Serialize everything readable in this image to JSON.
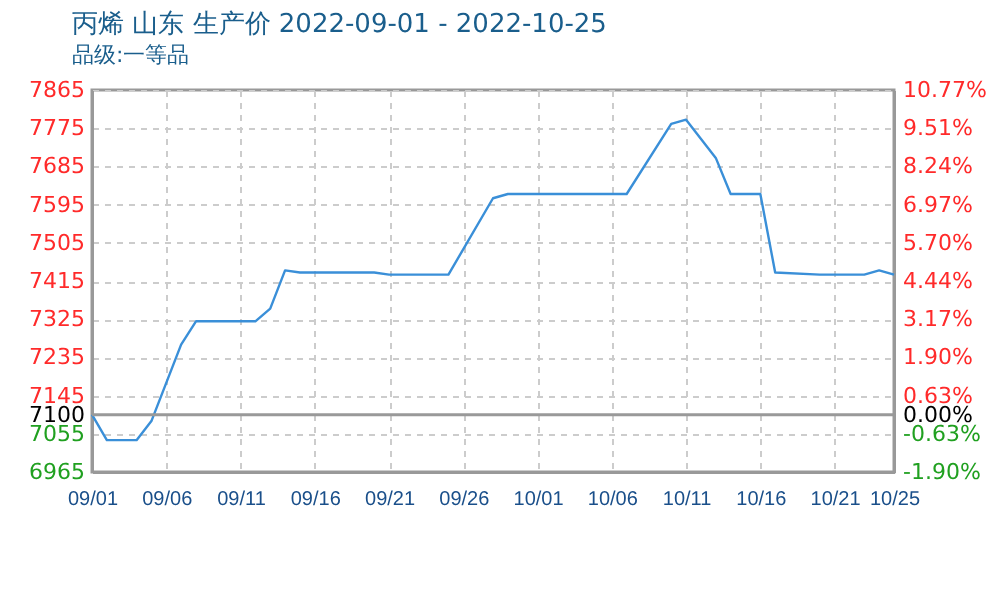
{
  "chart_data": {
    "type": "line",
    "title": "丙烯 山东 生产价 2022-09-01 - 2022-10-25",
    "subtitle": "品级:一等品",
    "x": [
      "2022-09-01",
      "2022-09-02",
      "2022-09-04",
      "2022-09-05",
      "2022-09-07",
      "2022-09-08",
      "2022-09-12",
      "2022-09-13",
      "2022-09-14",
      "2022-09-15",
      "2022-09-20",
      "2022-09-21",
      "2022-09-25",
      "2022-09-28",
      "2022-09-29",
      "2022-10-07",
      "2022-10-10",
      "2022-10-11",
      "2022-10-13",
      "2022-10-14",
      "2022-10-16",
      "2022-10-17",
      "2022-10-20",
      "2022-10-23",
      "2022-10-24",
      "2022-10-25"
    ],
    "series": [
      {
        "color": "#3a8fd8",
        "values": [
          7100,
          7040,
          7040,
          7085,
          7265,
          7320,
          7320,
          7350,
          7440,
          7435,
          7435,
          7430,
          7430,
          7610,
          7620,
          7620,
          7785,
          7795,
          7705,
          7620,
          7620,
          7435,
          7430,
          7430,
          7440,
          7430
        ]
      }
    ],
    "xlim": [
      "2022-09-01",
      "2022-10-25"
    ],
    "xticks": [
      {
        "value": "2022-09-01",
        "label": "09/01"
      },
      {
        "value": "2022-09-06",
        "label": "09/06"
      },
      {
        "value": "2022-09-11",
        "label": "09/11"
      },
      {
        "value": "2022-09-16",
        "label": "09/16"
      },
      {
        "value": "2022-09-21",
        "label": "09/21"
      },
      {
        "value": "2022-09-26",
        "label": "09/26"
      },
      {
        "value": "2022-10-01",
        "label": "10/01"
      },
      {
        "value": "2022-10-06",
        "label": "10/06"
      },
      {
        "value": "2022-10-11",
        "label": "10/11"
      },
      {
        "value": "2022-10-16",
        "label": "10/16"
      },
      {
        "value": "2022-10-21",
        "label": "10/21"
      },
      {
        "value": "2022-10-25",
        "label": "10/25"
      }
    ],
    "ylim": [
      6965,
      7865
    ],
    "yticks": [
      6965,
      7055,
      7100,
      7145,
      7235,
      7325,
      7415,
      7505,
      7595,
      7685,
      7775,
      7865
    ],
    "y2lim": [
      -1.9,
      10.77
    ],
    "y2ticks": [
      {
        "value": -1.9,
        "label": "-1.90%"
      },
      {
        "value": -0.63,
        "label": "-0.63%"
      },
      {
        "value": 0,
        "label": "0.00%"
      },
      {
        "value": 0.63,
        "label": "0.63%"
      },
      {
        "value": 1.9,
        "label": "1.90%"
      },
      {
        "value": 3.17,
        "label": "3.17%"
      },
      {
        "value": 4.44,
        "label": "4.44%"
      },
      {
        "value": 5.7,
        "label": "5.70%"
      },
      {
        "value": 6.97,
        "label": "6.97%"
      },
      {
        "value": 8.24,
        "label": "8.24%"
      },
      {
        "value": 9.51,
        "label": "9.51%"
      },
      {
        "value": 10.77,
        "label": "10.77%"
      }
    ],
    "ref_lines": [
      {
        "axis": "y2",
        "value": 0,
        "color": "#999999"
      }
    ],
    "grid": true
  }
}
